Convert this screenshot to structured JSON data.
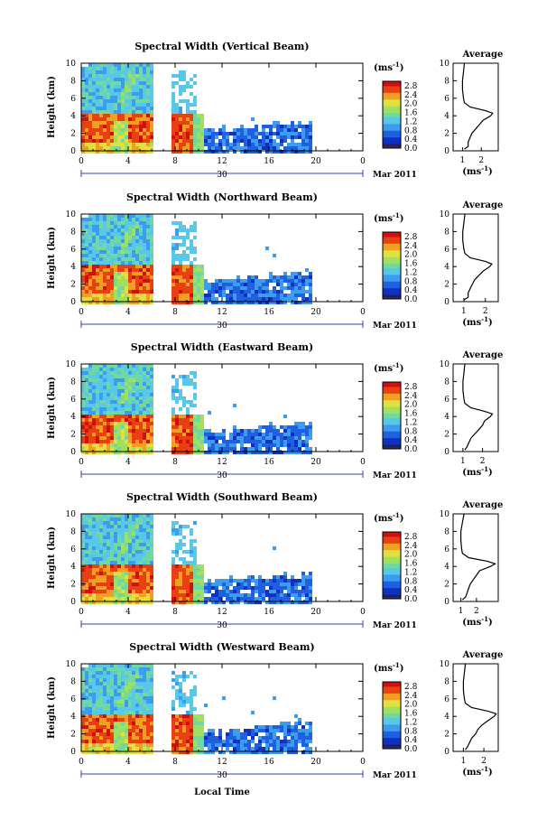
{
  "figure": {
    "xlabel": "Local Time",
    "ylabel": "Height (km)",
    "colorbar_unit": "(ms",
    "colorbar_unit_exp": "-1",
    "colorbar_unit_close": ")",
    "profile_title": "Average",
    "date_label": "Mar 2011",
    "day_label": "30",
    "colors": {
      "scale": [
        "#202060",
        "#1030c0",
        "#2060e0",
        "#3c9cf0",
        "#58c8e8",
        "#70d8a0",
        "#a0e060",
        "#e0e040",
        "#f0a020",
        "#e84010",
        "#d01010"
      ],
      "outline": "#000000",
      "day_bar": "#3040b0"
    }
  },
  "chart_data": [
    {
      "type": "heatmap",
      "title": "Spectral Width (Vertical Beam)",
      "x_ticks": [
        "0",
        "4",
        "8",
        "12",
        "16",
        "20",
        "0"
      ],
      "xlim": [
        0,
        24
      ],
      "y_ticks": [
        "0",
        "2",
        "4",
        "6",
        "8",
        "10"
      ],
      "ylim": [
        0,
        10
      ],
      "colorbar_ticks": [
        "0.0",
        "0.4",
        "0.8",
        "1.2",
        "1.6",
        "2.0",
        "2.4",
        "2.8"
      ],
      "colorbar_range": [
        0,
        3.0
      ],
      "data_gaps_hours": [
        [
          6.0,
          7.6
        ]
      ],
      "profile": {
        "title": "Average",
        "x_ticks": [
          "1",
          "2"
        ],
        "xlim": [
          0.5,
          2.9
        ],
        "heights_km": [
          0.2,
          0.5,
          1.0,
          1.5,
          2.0,
          2.5,
          3.0,
          3.5,
          4.0,
          4.3,
          4.6,
          5.0,
          5.5,
          6.0,
          7.0,
          8.0,
          9.0,
          10.0
        ],
        "values": [
          1.1,
          1.3,
          1.3,
          1.4,
          1.5,
          1.7,
          1.9,
          2.1,
          2.5,
          2.6,
          2.2,
          1.4,
          1.1,
          1.05,
          1.0,
          1.0,
          1.05,
          1.1
        ]
      }
    },
    {
      "type": "heatmap",
      "title": "Spectral Width (Northward Beam)",
      "x_ticks": [
        "0",
        "4",
        "8",
        "12",
        "16",
        "20",
        "0"
      ],
      "xlim": [
        0,
        24
      ],
      "y_ticks": [
        "0",
        "2",
        "4",
        "6",
        "8",
        "10"
      ],
      "ylim": [
        0,
        10
      ],
      "colorbar_ticks": [
        "0.0",
        "0.4",
        "0.8",
        "1.2",
        "1.6",
        "2.0",
        "2.4",
        "2.8"
      ],
      "colorbar_range": [
        0,
        3.0
      ],
      "data_gaps_hours": [
        [
          6.0,
          7.6
        ]
      ],
      "profile": {
        "title": "Average",
        "x_ticks": [
          "1",
          "2"
        ],
        "xlim": [
          0.5,
          2.6
        ],
        "heights_km": [
          0.2,
          0.5,
          1.0,
          1.5,
          2.0,
          2.5,
          3.0,
          3.5,
          4.0,
          4.3,
          4.6,
          5.0,
          5.5,
          6.0,
          7.0,
          8.0,
          9.0,
          10.0
        ],
        "values": [
          1.0,
          1.2,
          1.2,
          1.3,
          1.4,
          1.5,
          1.7,
          1.9,
          2.2,
          2.3,
          2.0,
          1.3,
          1.05,
          1.0,
          0.95,
          0.95,
          1.0,
          1.05
        ]
      }
    },
    {
      "type": "heatmap",
      "title": "Spectral Width (Eastward Beam)",
      "x_ticks": [
        "0",
        "4",
        "8",
        "12",
        "16",
        "20",
        "0"
      ],
      "xlim": [
        0,
        24
      ],
      "y_ticks": [
        "0",
        "2",
        "4",
        "6",
        "8",
        "10"
      ],
      "ylim": [
        0,
        10
      ],
      "colorbar_ticks": [
        "0.0",
        "0.4",
        "0.8",
        "1.2",
        "1.6",
        "2.0",
        "2.4",
        "2.8"
      ],
      "colorbar_range": [
        0,
        3.0
      ],
      "data_gaps_hours": [
        [
          6.0,
          7.6
        ]
      ],
      "profile": {
        "title": "Average",
        "x_ticks": [
          "1",
          "2"
        ],
        "xlim": [
          0.5,
          2.8
        ],
        "heights_km": [
          0.2,
          0.5,
          1.0,
          1.5,
          2.0,
          2.5,
          3.0,
          3.5,
          4.0,
          4.3,
          4.6,
          5.0,
          5.5,
          6.0,
          7.0,
          8.0,
          9.0,
          10.0
        ],
        "values": [
          1.1,
          1.2,
          1.3,
          1.4,
          1.6,
          1.8,
          2.0,
          2.1,
          2.4,
          2.5,
          2.1,
          1.4,
          1.1,
          1.05,
          1.0,
          1.0,
          1.05,
          1.1
        ]
      }
    },
    {
      "type": "heatmap",
      "title": "Spectral Width (Southward Beam)",
      "x_ticks": [
        "0",
        "4",
        "8",
        "12",
        "16",
        "20",
        "0"
      ],
      "xlim": [
        0,
        24
      ],
      "y_ticks": [
        "0",
        "2",
        "4",
        "6",
        "8",
        "10"
      ],
      "ylim": [
        0,
        10
      ],
      "colorbar_ticks": [
        "0.0",
        "0.4",
        "0.8",
        "1.2",
        "1.6",
        "2.0",
        "2.4",
        "2.8"
      ],
      "colorbar_range": [
        0,
        3.0
      ],
      "data_gaps_hours": [
        [
          6.0,
          7.6
        ]
      ],
      "profile": {
        "title": "Average",
        "x_ticks": [
          "1",
          "2"
        ],
        "xlim": [
          0.5,
          3.4
        ],
        "heights_km": [
          0.2,
          0.5,
          1.0,
          1.5,
          2.0,
          2.5,
          3.0,
          3.5,
          4.0,
          4.3,
          4.6,
          5.0,
          5.5,
          6.0,
          7.0,
          8.0,
          9.0,
          10.0
        ],
        "values": [
          1.1,
          1.3,
          1.4,
          1.5,
          1.6,
          1.8,
          2.0,
          2.2,
          2.9,
          3.2,
          2.7,
          1.5,
          1.1,
          1.05,
          1.0,
          1.0,
          1.1,
          1.2
        ]
      }
    },
    {
      "type": "heatmap",
      "title": "Spectral Width (Westward Beam)",
      "x_ticks": [
        "0",
        "4",
        "8",
        "12",
        "16",
        "20",
        "0"
      ],
      "xlim": [
        0,
        24
      ],
      "y_ticks": [
        "0",
        "2",
        "4",
        "6",
        "8",
        "10"
      ],
      "ylim": [
        0,
        10
      ],
      "colorbar_ticks": [
        "0.0",
        "0.4",
        "0.8",
        "1.2",
        "1.6",
        "2.0",
        "2.4",
        "2.8"
      ],
      "colorbar_range": [
        0,
        3.0
      ],
      "data_gaps_hours": [
        [
          6.0,
          7.6
        ]
      ],
      "profile": {
        "title": "Average",
        "x_ticks": [
          "1",
          "2"
        ],
        "xlim": [
          0.5,
          2.7
        ],
        "heights_km": [
          0.2,
          0.5,
          1.0,
          1.5,
          2.0,
          2.5,
          3.0,
          3.5,
          4.0,
          4.3,
          4.6,
          5.0,
          5.5,
          6.0,
          7.0,
          8.0,
          9.0,
          10.0
        ],
        "values": [
          1.1,
          1.2,
          1.3,
          1.4,
          1.6,
          1.7,
          1.9,
          2.2,
          2.5,
          2.6,
          2.2,
          1.4,
          1.1,
          1.05,
          1.0,
          1.0,
          1.05,
          1.1
        ]
      }
    }
  ]
}
